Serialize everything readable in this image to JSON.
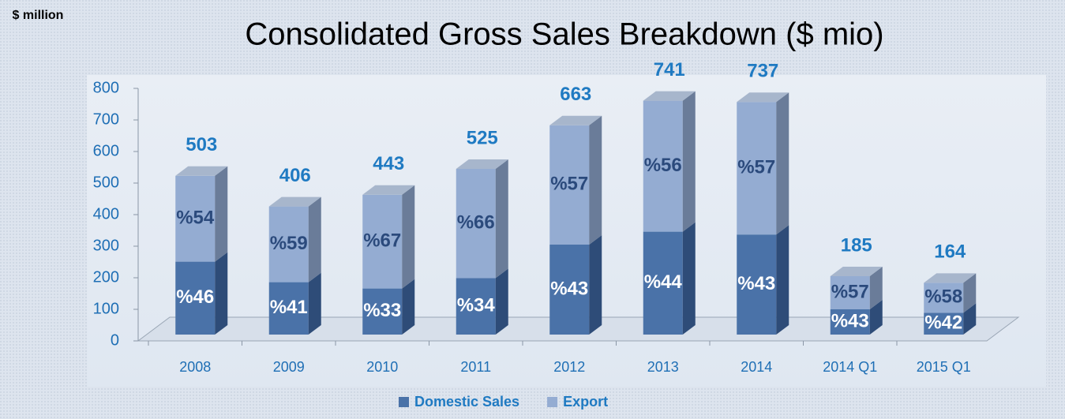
{
  "chart_data": {
    "type": "stacked_bar_3d",
    "title": "Consolidated Gross Sales Breakdown ($ mio)",
    "y_label": "$ million",
    "categories": [
      "2008",
      "2009",
      "2010",
      "2011",
      "2012",
      "2013",
      "2014",
      "2014 Q1",
      "2015 Q1"
    ],
    "series": [
      {
        "name": "Domestic Sales",
        "color": "#4a72a8",
        "side_color": "#2e4c78",
        "values": [
          231,
          166,
          146,
          179,
          285,
          326,
          317,
          80,
          69
        ]
      },
      {
        "name": "Export",
        "color": "#94acd2",
        "side_color": "#6a7c99",
        "values": [
          272,
          240,
          297,
          346,
          378,
          415,
          420,
          105,
          95
        ]
      }
    ],
    "shares": [
      {
        "name": "Domestic Sales",
        "values": [
          46,
          41,
          33,
          34,
          43,
          44,
          43,
          43,
          42
        ],
        "value_labels": [
          "%46",
          "%41",
          "%33",
          "%34",
          "%43",
          "%44",
          "%43",
          "%43",
          "%42"
        ]
      },
      {
        "name": "Export",
        "values": [
          54,
          59,
          67,
          66,
          57,
          56,
          57,
          57,
          58
        ],
        "value_labels": [
          "%54",
          "%59",
          "%67",
          "%66",
          "%57",
          "%56",
          "%57",
          "%57",
          "%58"
        ]
      }
    ],
    "totals": [
      503,
      406,
      443,
      525,
      663,
      741,
      737,
      185,
      164
    ],
    "ylim": [
      0,
      800
    ],
    "yticks": [
      0,
      100,
      200,
      300,
      400,
      500,
      600,
      700,
      800
    ]
  }
}
